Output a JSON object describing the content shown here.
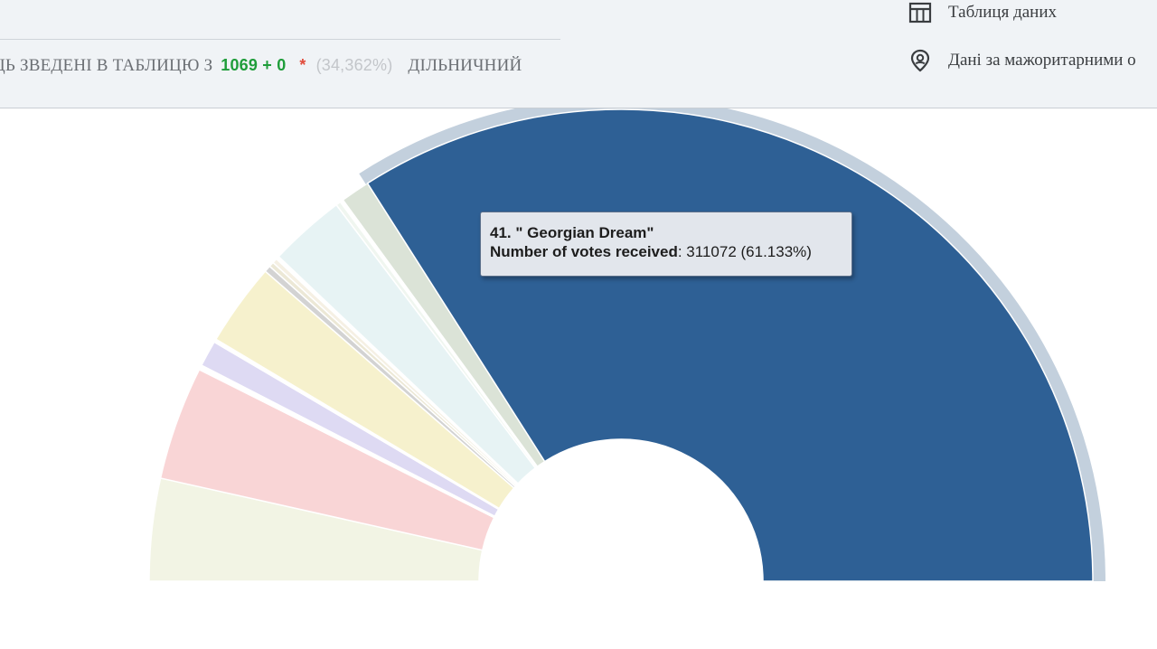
{
  "header": {
    "status": {
      "prefix": "ЦЬ ЗВЕДЕНІ В ТАБЛИЦЮ З",
      "count": "1069 + 0",
      "star": "*",
      "percent": "(34,362%)",
      "suffix": "ДІЛЬНИЧНИЙ"
    },
    "menu": {
      "table_label": "Таблиця даних",
      "table_icon": "table-icon",
      "majoritarian_label": "Дані за мажоритарними о",
      "majoritarian_icon": "location-pin-icon"
    }
  },
  "tooltip": {
    "title": "41. \" Georgian Dream\"",
    "label": "Number of votes received",
    "value": ": 311072 (61.133%)"
  },
  "colors": {
    "highlight": "#2e6095",
    "halo": "#c3d0dd",
    "header_bg": "#f0f3f6",
    "count_green": "#1f9d3a",
    "star_red": "#e14b3b"
  },
  "chart_data": {
    "type": "pie",
    "variant": "semicircle-donut",
    "slices": [
      {
        "color": "#f2f4e4",
        "value": 6.3
      },
      {
        "color": "#f9d5d6",
        "value": 7.0
      },
      {
        "color": "#ffffff",
        "value": 0.3
      },
      {
        "color": "#dedaf3",
        "value": 1.6
      },
      {
        "color": "#ffffff",
        "value": 0.2
      },
      {
        "color": "#f6f1cd",
        "value": 5.1
      },
      {
        "color": "#d3d3d3",
        "value": 0.4
      },
      {
        "color": "#ece8d6",
        "value": 0.3
      },
      {
        "color": "#f5f0e4",
        "value": 0.3
      },
      {
        "color": "#ffffff",
        "value": 0.2
      },
      {
        "color": "#e7f3f4",
        "value": 4.7
      },
      {
        "color": "#f0f6f0",
        "value": 0.3
      },
      {
        "color": "#ffffff",
        "value": 0.2
      },
      {
        "color": "#dbe3d7",
        "value": 1.8
      },
      {
        "name": "41. \" Georgian Dream\"",
        "color": "#2e6095",
        "value": 61.133,
        "votes": 311072,
        "highlighted": true
      }
    ]
  }
}
